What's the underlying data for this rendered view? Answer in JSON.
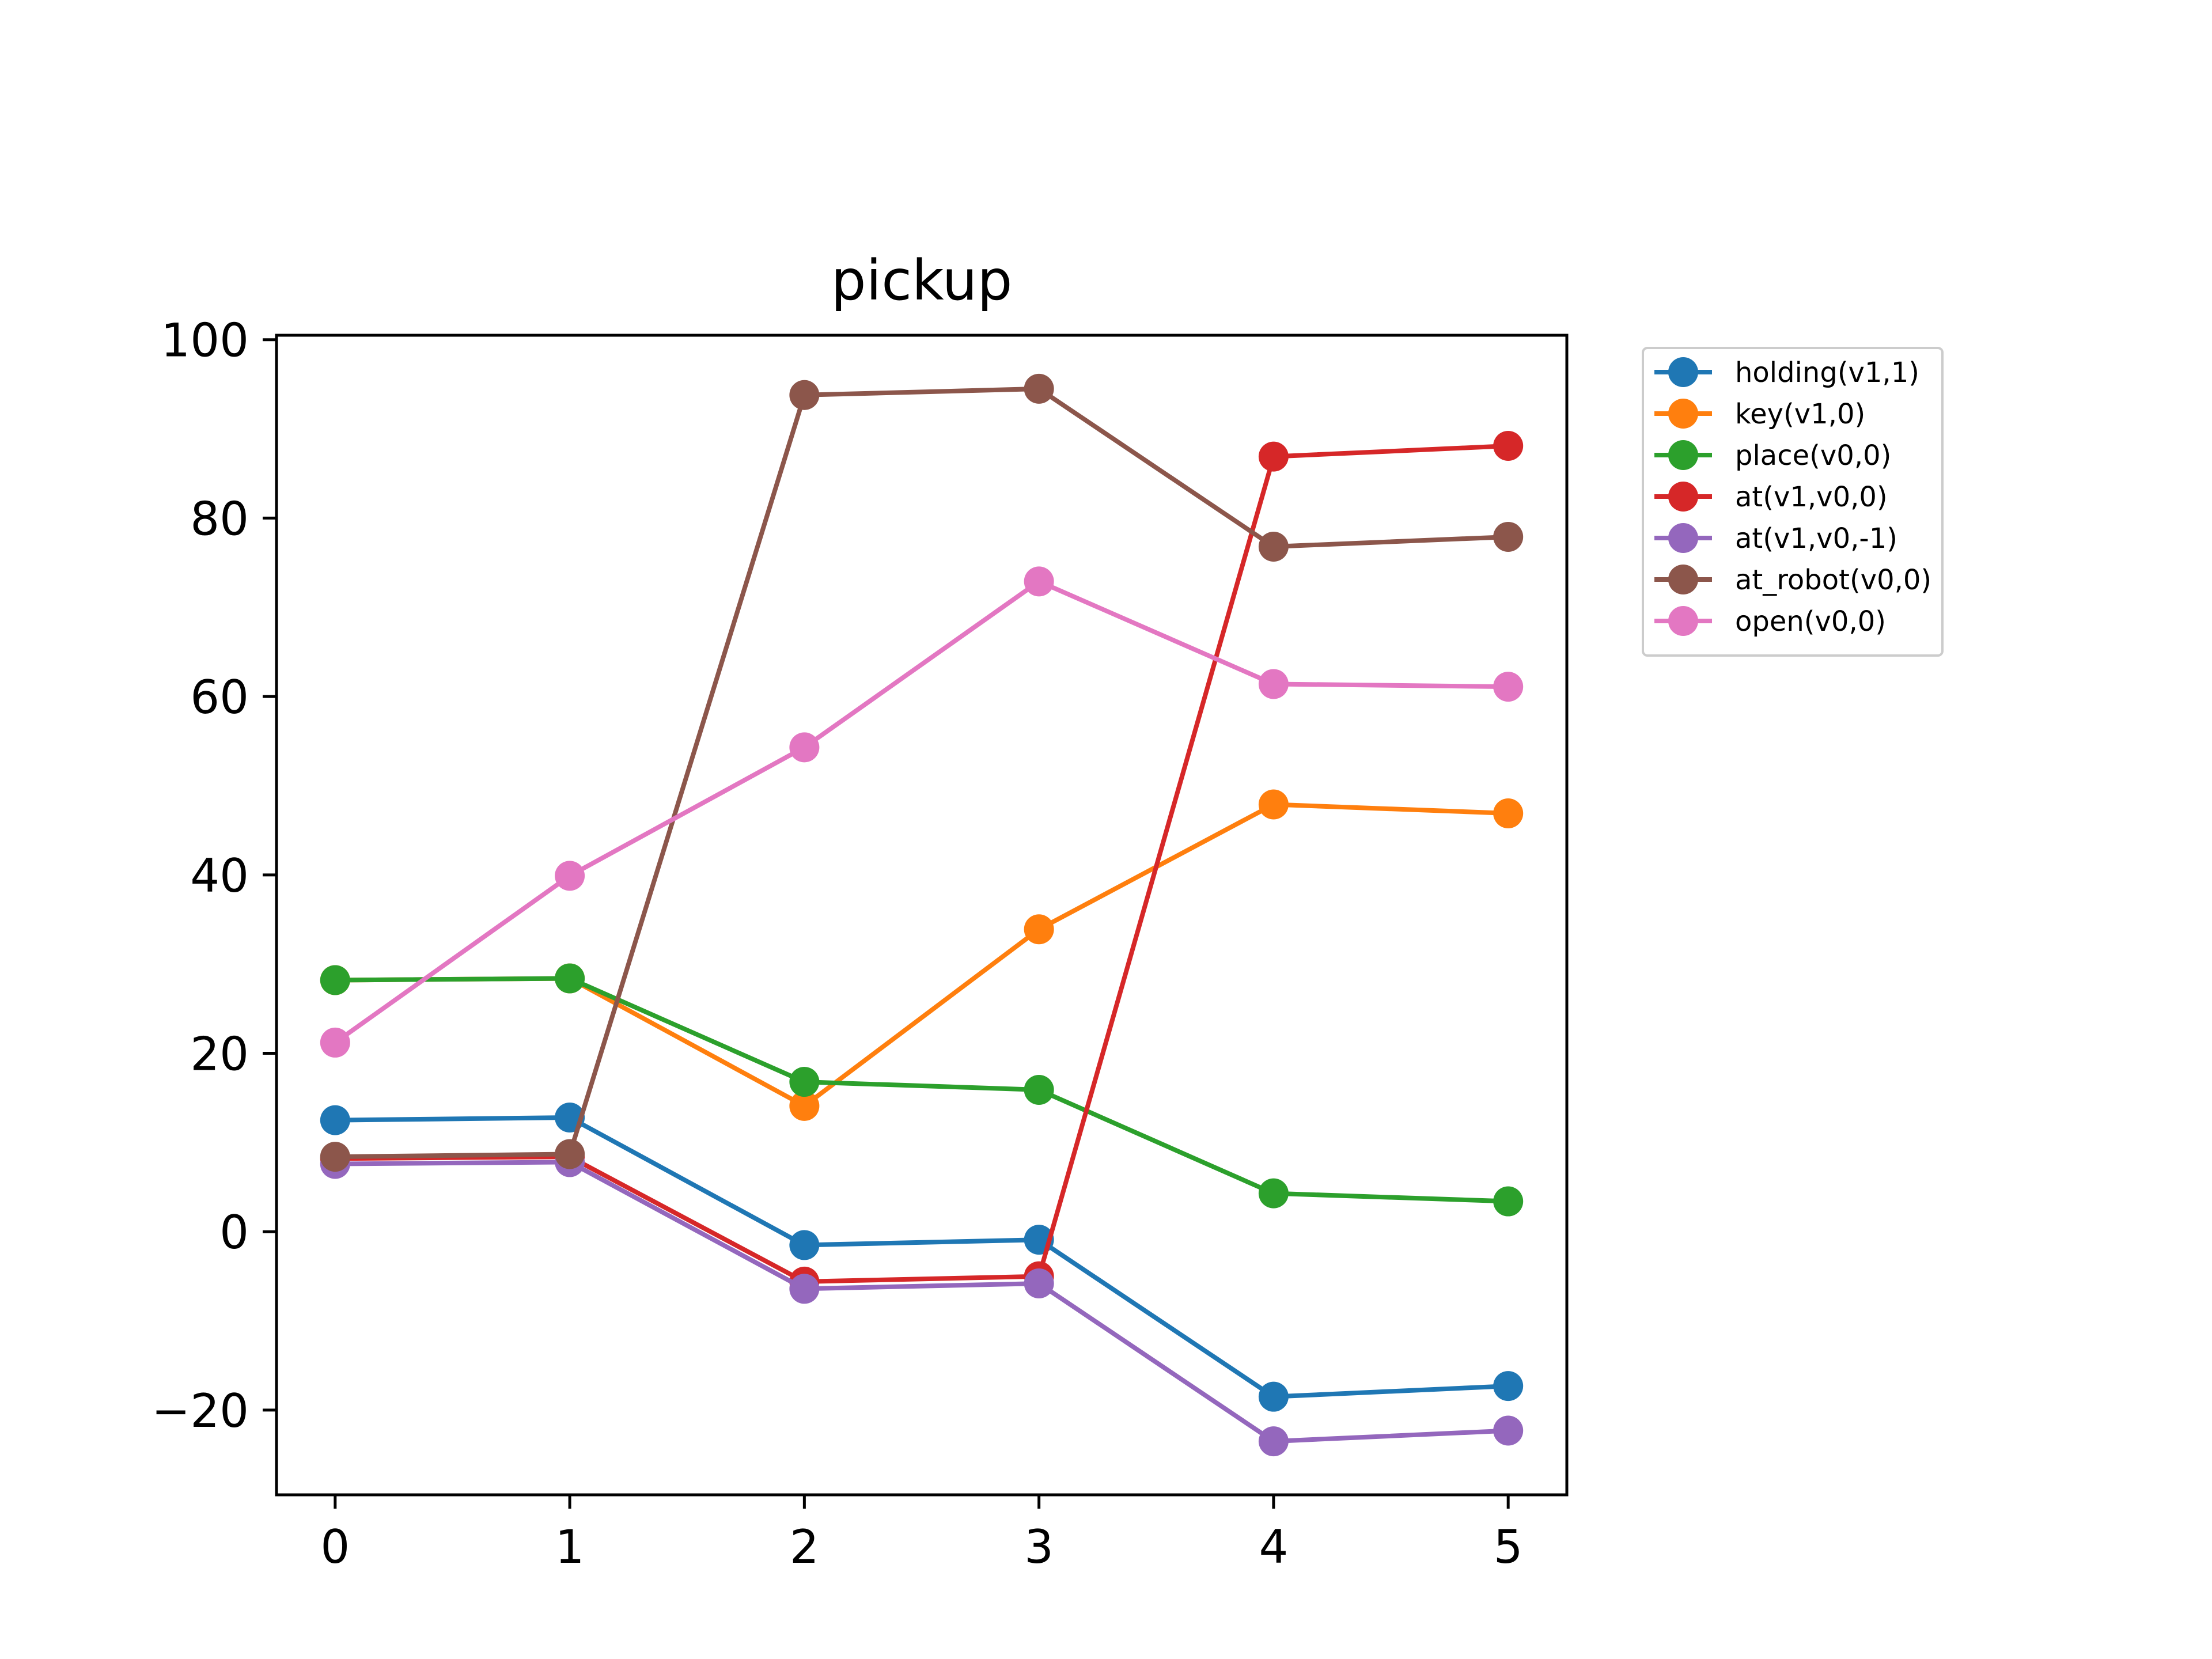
{
  "chart_data": {
    "type": "line",
    "title": "pickup",
    "xlabel": "",
    "ylabel": "",
    "x": [
      0,
      1,
      2,
      3,
      4,
      5
    ],
    "xlim": [
      -0.25,
      5.25
    ],
    "ylim": [
      -29.5,
      100.5
    ],
    "xticks": [
      0,
      1,
      2,
      3,
      4,
      5
    ],
    "yticks": [
      -20,
      0,
      20,
      40,
      60,
      80,
      100
    ],
    "ytick_labels": [
      "−20",
      "0",
      "20",
      "40",
      "60",
      "80",
      "100"
    ],
    "grid": false,
    "legend": "outside-upper-right",
    "series": [
      {
        "name": "holding(v1,1)",
        "color": "#1f77b4",
        "values": [
          12.5,
          12.8,
          -1.5,
          -0.9,
          -18.5,
          -17.3
        ]
      },
      {
        "name": "key(v1,0)",
        "color": "#ff7f0e",
        "values": [
          28.2,
          28.4,
          14.1,
          33.9,
          47.9,
          46.9
        ]
      },
      {
        "name": "place(v0,0)",
        "color": "#2ca02c",
        "values": [
          28.2,
          28.4,
          16.8,
          15.9,
          4.3,
          3.4
        ]
      },
      {
        "name": "at(v1,v0,0)",
        "color": "#d62728",
        "values": [
          8.2,
          8.4,
          -5.6,
          -5.0,
          86.9,
          88.1
        ]
      },
      {
        "name": "at(v1,v0,-1)",
        "color": "#9467bd",
        "values": [
          7.6,
          7.8,
          -6.4,
          -5.8,
          -23.5,
          -22.3
        ]
      },
      {
        "name": "at_robot(v0,0)",
        "color": "#8c564b",
        "values": [
          8.4,
          8.7,
          93.8,
          94.5,
          76.8,
          77.9
        ]
      },
      {
        "name": "open(v0,0)",
        "color": "#e377c2",
        "values": [
          21.2,
          39.9,
          54.3,
          72.9,
          61.4,
          61.1
        ]
      }
    ]
  }
}
